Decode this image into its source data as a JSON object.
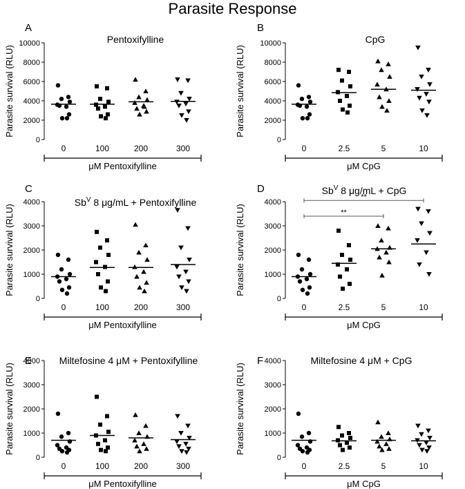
{
  "figure_title": "Parasite Response",
  "chart_data": [
    {
      "panel": "A",
      "type": "scatter",
      "title": "Pentoxifylline",
      "ylabel": "Parasite survival (RLU)",
      "xlabel": "μM Pentoxifylline",
      "categories": [
        "0",
        "100",
        "200",
        "300"
      ],
      "yticks": [
        "0",
        "2000",
        "4000",
        "6000",
        "8000",
        "10000"
      ],
      "ylim": [
        0,
        10000
      ],
      "markers": [
        "circle",
        "square",
        "triangle-up",
        "triangle-down"
      ],
      "means": [
        3650,
        3650,
        3900,
        3950
      ],
      "points": [
        [
          5600,
          4400,
          4200,
          3900,
          3600,
          3400,
          3500,
          2600,
          2200,
          2200
        ],
        [
          5500,
          5300,
          4200,
          3900,
          3600,
          3400,
          3200,
          2600,
          2400,
          2200
        ],
        [
          6200,
          5000,
          4400,
          4100,
          3800,
          3500,
          3200,
          2900,
          2600,
          3400
        ],
        [
          6200,
          6100,
          4800,
          4200,
          3900,
          3700,
          3500,
          2900,
          2500,
          2000
        ]
      ],
      "significance": []
    },
    {
      "panel": "B",
      "type": "scatter",
      "title": "CpG",
      "ylabel": "Parasite survival (RLU)",
      "xlabel": "μM CpG",
      "categories": [
        "0",
        "2.5",
        "5",
        "10"
      ],
      "yticks": [
        "0",
        "2000",
        "4000",
        "6000",
        "8000",
        "10000"
      ],
      "ylim": [
        0,
        10000
      ],
      "markers": [
        "circle",
        "square",
        "triangle-up",
        "triangle-down"
      ],
      "means": [
        3650,
        4850,
        5200,
        5100
      ],
      "points": [
        [
          5600,
          4400,
          4200,
          3900,
          3600,
          3400,
          3500,
          2600,
          2200,
          2200
        ],
        [
          7200,
          7000,
          6100,
          5500,
          4900,
          4500,
          4000,
          3500,
          3100,
          2800
        ],
        [
          8100,
          7800,
          7200,
          6500,
          5700,
          5200,
          4400,
          4000,
          3400,
          3000
        ],
        [
          9500,
          7200,
          6500,
          5700,
          5200,
          4700,
          4300,
          3900,
          3000,
          2500
        ]
      ],
      "significance": []
    },
    {
      "panel": "C",
      "type": "scatter",
      "title": "Sb",
      "title_sup": "V",
      "title_rest": " 8 μg/mL + Pentoxifylline",
      "ylabel": "Parasite survival (RLU)",
      "xlabel": "μM Pentoxifylline",
      "categories": [
        "0",
        "100",
        "200",
        "300"
      ],
      "yticks": [
        "0",
        "1000",
        "2000",
        "3000",
        "4000"
      ],
      "ylim": [
        0,
        4000
      ],
      "markers": [
        "circle",
        "square",
        "triangle-up",
        "triangle-down"
      ],
      "means": [
        900,
        1280,
        1280,
        1400
      ],
      "points": [
        [
          1800,
          1600,
          1200,
          1000,
          900,
          800,
          700,
          450,
          350,
          200
        ],
        [
          2750,
          2400,
          2100,
          1800,
          1500,
          1300,
          1000,
          700,
          450,
          300
        ],
        [
          3050,
          2200,
          1900,
          1600,
          1300,
          1100,
          900,
          650,
          450,
          300
        ],
        [
          3650,
          2900,
          2100,
          1600,
          1300,
          1100,
          900,
          700,
          450,
          300
        ]
      ],
      "significance": []
    },
    {
      "panel": "D",
      "type": "scatter",
      "title": "Sb",
      "title_sup": "V",
      "title_rest": " 8 μg/mL + CpG",
      "ylabel": "Parasite survival (RLU)",
      "xlabel": "μM CpG",
      "categories": [
        "0",
        "2.5",
        "5",
        "10"
      ],
      "yticks": [
        "0",
        "1000",
        "2000",
        "3000",
        "4000"
      ],
      "ylim": [
        0,
        4000
      ],
      "markers": [
        "circle",
        "square",
        "triangle-up",
        "triangle-down"
      ],
      "means": [
        900,
        1450,
        2050,
        2250
      ],
      "points": [
        [
          1800,
          1600,
          1200,
          1000,
          900,
          800,
          700,
          450,
          350,
          200
        ],
        [
          2800,
          2200,
          1800,
          1600,
          1400,
          1200,
          900,
          600,
          400
        ],
        [
          3000,
          2900,
          2400,
          2100,
          2050,
          1900,
          1700,
          1500,
          950
        ],
        [
          3700,
          3600,
          3100,
          2700,
          2400,
          1900,
          1400,
          1000
        ]
      ],
      "significance": [
        {
          "from": 0,
          "to": 3,
          "label": "**",
          "y": 4050
        },
        {
          "from": 0,
          "to": 2,
          "label": "**",
          "y": 3400
        }
      ]
    },
    {
      "panel": "E",
      "type": "scatter",
      "title": "Miltefosine 4 μM + Pentoxifylline",
      "ylabel": "Parasite survival (RLU)",
      "xlabel": "μM Pentoxifylline",
      "categories": [
        "0",
        "100",
        "200",
        "300"
      ],
      "yticks": [
        "0",
        "1000",
        "2000",
        "3000",
        "4000"
      ],
      "ylim": [
        0,
        4000
      ],
      "markers": [
        "circle",
        "square",
        "triangle-up",
        "triangle-down"
      ],
      "means": [
        700,
        900,
        800,
        730
      ],
      "points": [
        [
          1800,
          1000,
          850,
          650,
          500,
          400,
          350,
          300,
          250,
          200
        ],
        [
          2500,
          1700,
          1350,
          1050,
          900,
          700,
          550,
          400,
          300,
          250
        ],
        [
          1750,
          1300,
          1000,
          850,
          700,
          550,
          450,
          350,
          250
        ],
        [
          1700,
          1300,
          1000,
          800,
          650,
          550,
          450,
          350,
          250,
          200
        ]
      ],
      "significance": []
    },
    {
      "panel": "F",
      "type": "scatter",
      "title": "Miltefosine 4 μM + CpG",
      "ylabel": "Parasite survival (RLU)",
      "xlabel": "μM CpG",
      "categories": [
        "0",
        "2.5",
        "5",
        "10"
      ],
      "yticks": [
        "0",
        "1000",
        "2000",
        "3000",
        "4000"
      ],
      "ylim": [
        0,
        4000
      ],
      "markers": [
        "circle",
        "square",
        "triangle-up",
        "triangle-down"
      ],
      "means": [
        700,
        680,
        700,
        680
      ],
      "points": [
        [
          1800,
          1000,
          850,
          650,
          500,
          400,
          350,
          300,
          250,
          200
        ],
        [
          1250,
          1000,
          900,
          800,
          700,
          600,
          500,
          400,
          300
        ],
        [
          1450,
          1000,
          850,
          750,
          650,
          550,
          450,
          350,
          300
        ],
        [
          1300,
          1100,
          950,
          800,
          700,
          600,
          500,
          400,
          300,
          250
        ]
      ],
      "significance": []
    }
  ]
}
